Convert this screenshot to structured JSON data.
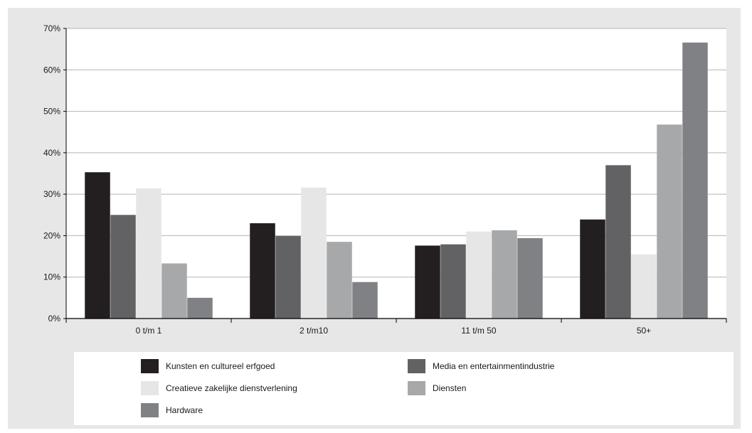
{
  "chart_data": {
    "type": "bar",
    "title": "",
    "xlabel": "",
    "ylabel": "",
    "categories": [
      "0 t/m 1",
      "2 t/m10",
      "11 t/m 50",
      "50+"
    ],
    "ylim": [
      0,
      70
    ],
    "yticks": [
      "0%",
      "10%",
      "20%",
      "30%",
      "40%",
      "50%",
      "60%",
      "70%"
    ],
    "grid": true,
    "legend_position": "bottom",
    "series": [
      {
        "name": "Kunsten en cultureel erfgoed",
        "color": "#231f20",
        "values": [
          35.3,
          23.0,
          17.6,
          23.9
        ]
      },
      {
        "name": "Media en entertainmentindustrie",
        "color": "#626264",
        "values": [
          25.0,
          19.9,
          17.9,
          37.0
        ]
      },
      {
        "name": "Creatieve zakelijke dienstverlening",
        "color": "#e6e6e7",
        "values": [
          31.4,
          31.6,
          21.0,
          15.5
        ]
      },
      {
        "name": "Diensten",
        "color": "#a7a8aa",
        "values": [
          13.3,
          18.5,
          21.3,
          46.8
        ]
      },
      {
        "name": "Hardware",
        "color": "#808184",
        "values": [
          5.0,
          8.8,
          19.4,
          66.6
        ]
      }
    ]
  }
}
